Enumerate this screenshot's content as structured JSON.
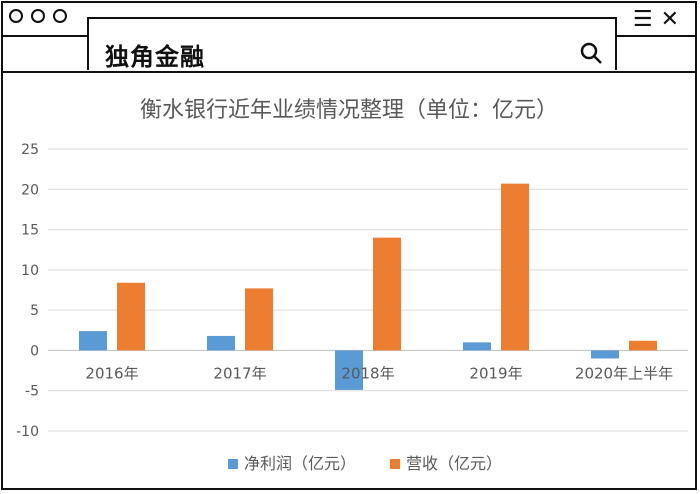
{
  "app": {
    "brand": "独角金融"
  },
  "chart_data": {
    "type": "bar",
    "title": "衡水银行近年业绩情况整理（单位：亿元）",
    "categories": [
      "2016年",
      "2017年",
      "2018年",
      "2019年",
      "2020年上半年"
    ],
    "series": [
      {
        "name": "净利润（亿元）",
        "color": "#5B9BD5",
        "values": [
          2.4,
          1.8,
          -4.9,
          1.0,
          -1.0
        ]
      },
      {
        "name": "营收（亿元）",
        "color": "#ED7D31",
        "values": [
          8.4,
          7.7,
          14.0,
          20.7,
          1.2
        ]
      }
    ],
    "ylim": [
      -10,
      25
    ],
    "yticks": [
      25,
      20,
      15,
      10,
      5,
      0,
      -5,
      -10
    ],
    "grid": true,
    "legend": "bottom"
  }
}
